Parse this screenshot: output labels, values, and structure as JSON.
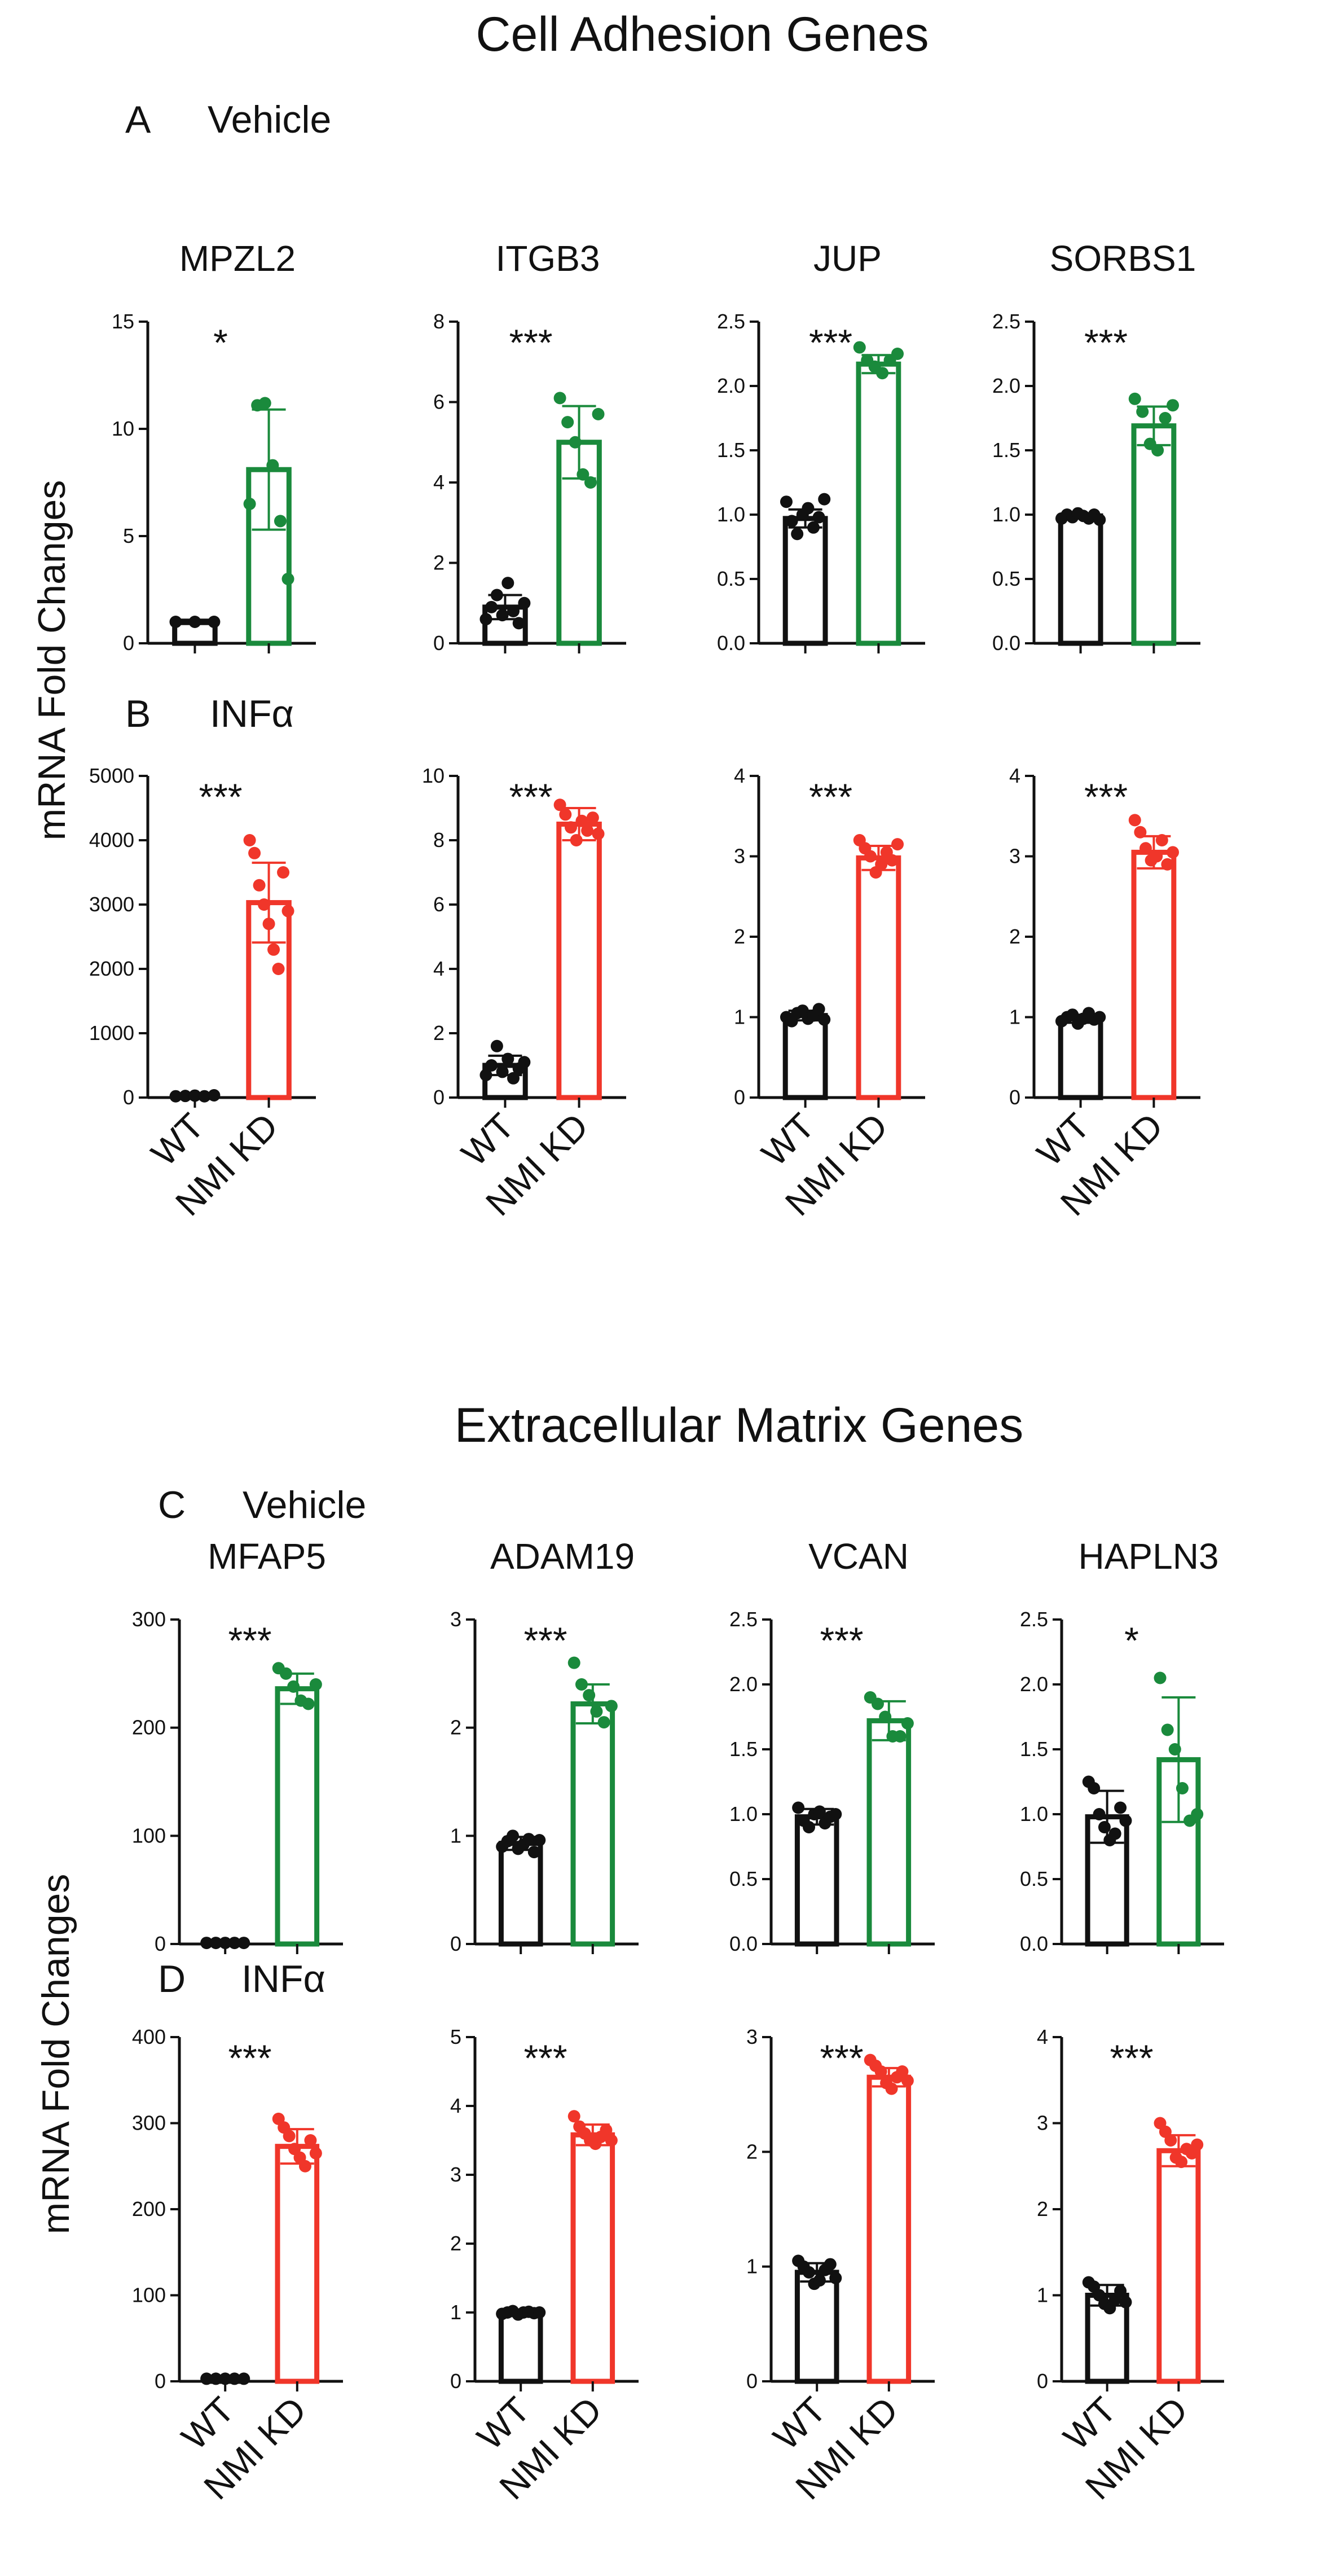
{
  "figure": {
    "section1_title": "Cell Adhesion Genes",
    "section2_title": "Extracellular Matrix Genes",
    "panel_A_letter": "A",
    "panel_A_label": "Vehicle",
    "panel_B_letter": "B",
    "panel_B_label": "INFα",
    "panel_C_letter": "C",
    "panel_C_label": "Vehicle",
    "panel_D_letter": "D",
    "panel_D_label": "INFα",
    "y_axis_label": "mRNA Fold Changes",
    "x_categories": [
      "WT",
      "NMI KD"
    ],
    "colors": {
      "wt": "#111111",
      "vehicle": "#1a8a3c",
      "infa": "#f0362a"
    }
  },
  "chart_data": [
    {
      "type": "bar",
      "panel": "A",
      "title": "MPZL2",
      "categories": [
        "WT",
        "NMI KD"
      ],
      "values": [
        1.0,
        8.1
      ],
      "errors": [
        0.1,
        2.8
      ],
      "significance": "*",
      "ylim": [
        0,
        15
      ],
      "yticks": [
        0,
        5,
        10,
        15
      ],
      "points": [
        [
          1.0,
          1.0,
          1.0
        ],
        [
          6.5,
          11.1,
          11.2,
          8.3,
          5.7,
          3.0
        ]
      ]
    },
    {
      "type": "bar",
      "panel": "A",
      "title": "ITGB3",
      "categories": [
        "WT",
        "NMI KD"
      ],
      "values": [
        0.9,
        5.0
      ],
      "errors": [
        0.3,
        0.9
      ],
      "significance": "***",
      "ylim": [
        0,
        8
      ],
      "yticks": [
        0,
        2,
        4,
        6,
        8
      ],
      "points": [
        [
          0.6,
          0.9,
          1.2,
          0.7,
          1.5,
          0.8,
          0.5,
          1.0
        ],
        [
          6.1,
          5.5,
          5.0,
          4.2,
          4.0,
          5.7
        ]
      ]
    },
    {
      "type": "bar",
      "panel": "A",
      "title": "JUP",
      "categories": [
        "WT",
        "NMI KD"
      ],
      "values": [
        0.97,
        2.17
      ],
      "errors": [
        0.07,
        0.07
      ],
      "significance": "***",
      "ylim": [
        0,
        2.5
      ],
      "yticks": [
        0.0,
        0.5,
        1.0,
        1.5,
        2.0,
        2.5
      ],
      "points": [
        [
          1.1,
          0.95,
          0.85,
          1.0,
          1.05,
          0.9,
          0.98,
          1.12
        ],
        [
          2.3,
          2.2,
          2.15,
          2.1,
          2.2,
          2.25
        ]
      ]
    },
    {
      "type": "bar",
      "panel": "A",
      "title": "SORBS1",
      "categories": [
        "WT",
        "NMI KD"
      ],
      "values": [
        0.99,
        1.69
      ],
      "errors": [
        0.02,
        0.15
      ],
      "significance": "***",
      "ylim": [
        0,
        2.5
      ],
      "yticks": [
        0.0,
        0.5,
        1.0,
        1.5,
        2.0,
        2.5
      ],
      "points": [
        [
          0.97,
          1.0,
          0.98,
          1.01,
          0.99,
          0.97,
          1.0,
          0.96
        ],
        [
          1.9,
          1.8,
          1.55,
          1.5,
          1.75,
          1.85
        ]
      ]
    },
    {
      "type": "bar",
      "panel": "B",
      "title": "",
      "categories": [
        "WT",
        "NMI KD"
      ],
      "values": [
        30,
        3030
      ],
      "errors": [
        10,
        620
      ],
      "significance": "***",
      "ylim": [
        0,
        5000
      ],
      "yticks": [
        0,
        1000,
        2000,
        3000,
        4000,
        5000
      ],
      "points": [
        [
          20,
          25,
          30,
          20,
          35
        ],
        [
          4000,
          3800,
          3300,
          3000,
          2700,
          2300,
          2000,
          3500,
          2900
        ]
      ]
    },
    {
      "type": "bar",
      "panel": "B",
      "title": "",
      "categories": [
        "WT",
        "NMI KD"
      ],
      "values": [
        1.0,
        8.5
      ],
      "errors": [
        0.3,
        0.5
      ],
      "significance": "***",
      "ylim": [
        0,
        10
      ],
      "yticks": [
        0,
        2,
        4,
        6,
        8,
        10
      ],
      "points": [
        [
          0.7,
          1.0,
          1.6,
          0.8,
          1.2,
          0.6,
          0.9,
          1.1
        ],
        [
          9.1,
          8.8,
          8.4,
          8.0,
          8.6,
          8.3,
          8.7,
          8.2
        ]
      ]
    },
    {
      "type": "bar",
      "panel": "B",
      "title": "",
      "categories": [
        "WT",
        "NMI KD"
      ],
      "values": [
        1.02,
        2.98
      ],
      "errors": [
        0.06,
        0.15
      ],
      "significance": "***",
      "ylim": [
        0,
        4
      ],
      "yticks": [
        0,
        1,
        2,
        3,
        4
      ],
      "points": [
        [
          1.0,
          0.95,
          1.05,
          1.08,
          0.98,
          1.02,
          1.1,
          0.97
        ],
        [
          3.2,
          3.1,
          3.0,
          2.8,
          2.9,
          3.05,
          2.95,
          3.15
        ]
      ]
    },
    {
      "type": "bar",
      "panel": "B",
      "title": "",
      "categories": [
        "WT",
        "NMI KD"
      ],
      "values": [
        0.98,
        3.05
      ],
      "errors": [
        0.05,
        0.2
      ],
      "significance": "***",
      "ylim": [
        0,
        4
      ],
      "yticks": [
        0,
        1,
        2,
        3,
        4
      ],
      "points": [
        [
          0.95,
          1.0,
          1.03,
          0.92,
          0.98,
          1.05,
          0.97,
          1.0
        ],
        [
          3.45,
          3.3,
          3.1,
          2.95,
          3.0,
          3.2,
          2.9,
          3.05
        ]
      ]
    },
    {
      "type": "bar",
      "panel": "C",
      "title": "MFAP5",
      "categories": [
        "WT",
        "NMI KD"
      ],
      "values": [
        1,
        236
      ],
      "errors": [
        0.5,
        14
      ],
      "significance": "***",
      "ylim": [
        0,
        300
      ],
      "yticks": [
        0,
        100,
        200,
        300
      ],
      "points": [
        [
          1,
          1,
          1,
          1,
          1
        ],
        [
          255,
          250,
          238,
          225,
          222,
          240
        ]
      ]
    },
    {
      "type": "bar",
      "panel": "C",
      "title": "ADAM19",
      "categories": [
        "WT",
        "NMI KD"
      ],
      "values": [
        0.93,
        2.22
      ],
      "errors": [
        0.06,
        0.18
      ],
      "significance": "***",
      "ylim": [
        0,
        3
      ],
      "yticks": [
        0,
        1,
        2,
        3
      ],
      "points": [
        [
          0.9,
          0.95,
          1.0,
          0.88,
          0.92,
          0.97,
          0.85,
          0.96
        ],
        [
          2.6,
          2.4,
          2.3,
          2.15,
          2.05,
          2.2
        ]
      ]
    },
    {
      "type": "bar",
      "panel": "C",
      "title": "VCAN",
      "categories": [
        "WT",
        "NMI KD"
      ],
      "values": [
        0.98,
        1.72
      ],
      "errors": [
        0.06,
        0.15
      ],
      "significance": "***",
      "ylim": [
        0,
        2.5
      ],
      "yticks": [
        0.0,
        0.5,
        1.0,
        1.5,
        2.0,
        2.5
      ],
      "points": [
        [
          1.05,
          0.95,
          0.9,
          1.0,
          1.02,
          0.93,
          0.98,
          1.0
        ],
        [
          1.9,
          1.85,
          1.75,
          1.6,
          1.6,
          1.7
        ]
      ]
    },
    {
      "type": "bar",
      "panel": "C",
      "title": "HAPLN3",
      "categories": [
        "WT",
        "NMI KD"
      ],
      "values": [
        0.98,
        1.42
      ],
      "errors": [
        0.2,
        0.48
      ],
      "significance": "*",
      "ylim": [
        0,
        2.5
      ],
      "yticks": [
        0.0,
        0.5,
        1.0,
        1.5,
        2.0,
        2.5
      ],
      "points": [
        [
          1.25,
          1.2,
          1.0,
          0.9,
          0.8,
          0.85,
          1.05,
          0.95
        ],
        [
          2.05,
          1.65,
          1.5,
          1.2,
          0.95,
          1.0
        ]
      ]
    },
    {
      "type": "bar",
      "panel": "D",
      "title": "",
      "categories": [
        "WT",
        "NMI KD"
      ],
      "values": [
        3,
        273
      ],
      "errors": [
        1,
        20
      ],
      "significance": "***",
      "ylim": [
        0,
        400
      ],
      "yticks": [
        0,
        100,
        200,
        300,
        400
      ],
      "points": [
        [
          3,
          3,
          3,
          3,
          3
        ],
        [
          305,
          295,
          285,
          270,
          260,
          250,
          280,
          265
        ]
      ]
    },
    {
      "type": "bar",
      "panel": "D",
      "title": "",
      "categories": [
        "WT",
        "NMI KD"
      ],
      "values": [
        1.0,
        3.58
      ],
      "errors": [
        0.03,
        0.15
      ],
      "significance": "***",
      "ylim": [
        0,
        5
      ],
      "yticks": [
        0,
        1,
        2,
        3,
        4,
        5
      ],
      "points": [
        [
          0.98,
          1.0,
          1.02,
          0.97,
          1.0,
          1.01,
          0.99,
          1.0
        ],
        [
          3.85,
          3.7,
          3.6,
          3.5,
          3.45,
          3.55,
          3.65,
          3.5
        ]
      ]
    },
    {
      "type": "bar",
      "panel": "D",
      "title": "",
      "categories": [
        "WT",
        "NMI KD"
      ],
      "values": [
        0.95,
        2.65
      ],
      "errors": [
        0.08,
        0.08
      ],
      "significance": "***",
      "ylim": [
        0,
        3
      ],
      "yticks": [
        0,
        1,
        2,
        3
      ],
      "points": [
        [
          1.05,
          1.0,
          0.95,
          0.85,
          0.88,
          0.97,
          1.02,
          0.9
        ],
        [
          2.8,
          2.75,
          2.7,
          2.6,
          2.55,
          2.65,
          2.7,
          2.62
        ]
      ]
    },
    {
      "type": "bar",
      "panel": "D",
      "title": "",
      "categories": [
        "WT",
        "NMI KD"
      ],
      "values": [
        1.0,
        2.68
      ],
      "errors": [
        0.12,
        0.18
      ],
      "significance": "***",
      "ylim": [
        0,
        4
      ],
      "yticks": [
        0,
        1,
        2,
        3,
        4
      ],
      "points": [
        [
          1.15,
          1.1,
          1.0,
          0.9,
          0.85,
          0.95,
          1.05,
          0.92
        ],
        [
          3.0,
          2.9,
          2.8,
          2.6,
          2.55,
          2.7,
          2.65,
          2.75
        ]
      ]
    }
  ]
}
